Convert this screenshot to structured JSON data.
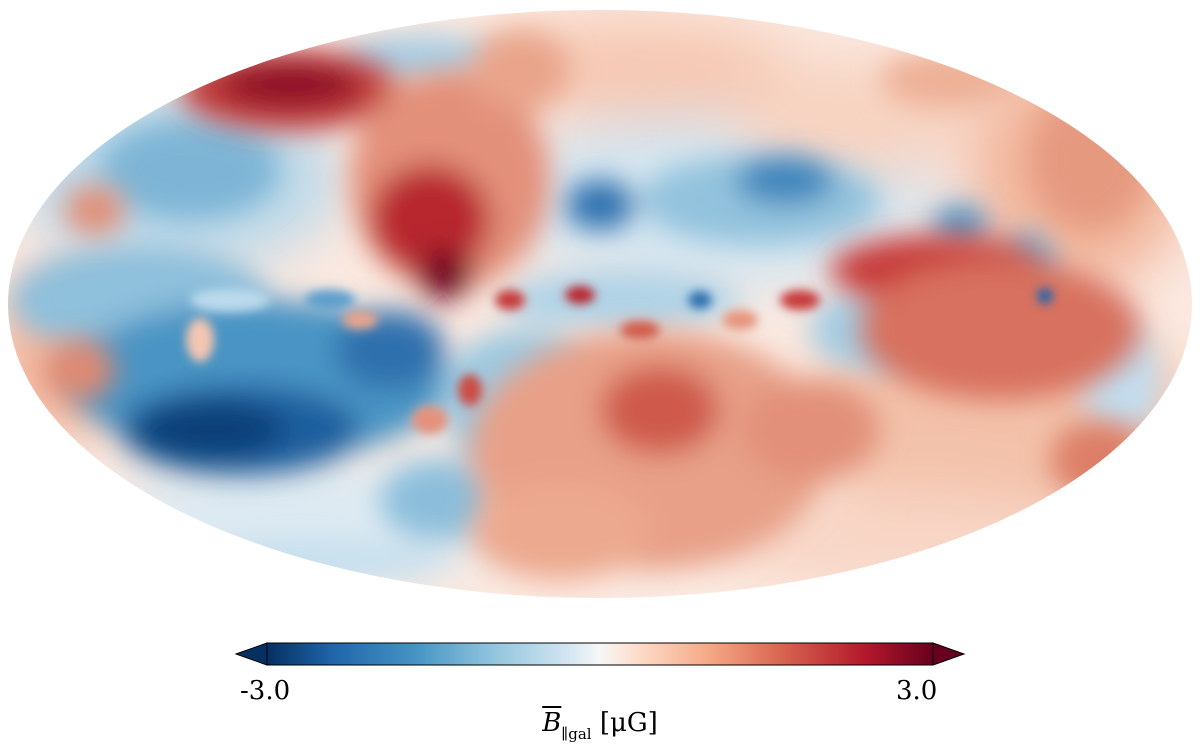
{
  "map": {
    "projection": "mollweide",
    "colormap": "RdBu_r",
    "colors": {
      "negative_extreme": "#053061",
      "negative_strong": "#2166ac",
      "negative_mid": "#4393c3",
      "negative_light": "#92c5de",
      "neutral": "#f7f7f7",
      "positive_light": "#f4a582",
      "positive_mid": "#d6604d",
      "positive_strong": "#b2182b",
      "positive_extreme": "#67001f"
    }
  },
  "colorbar": {
    "min_label": "-3.0",
    "max_label": "3.0",
    "min": -3.0,
    "max": 3.0,
    "extend": "both",
    "label": {
      "symbol": "B",
      "subscript": "∥gal",
      "unit": "[μG]"
    }
  }
}
